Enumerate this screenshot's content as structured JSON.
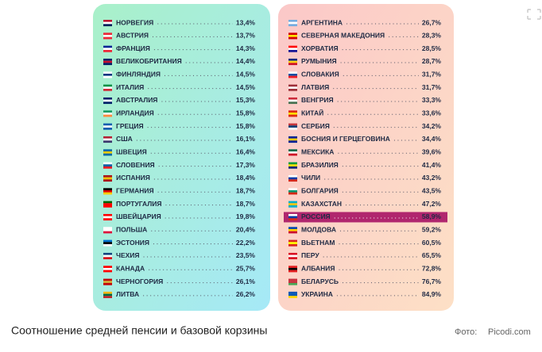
{
  "left": {
    "rows": [
      {
        "name": "НОРВЕГИЯ",
        "value": "13,4%"
      },
      {
        "name": "АВСТРИЯ",
        "value": "13,7%"
      },
      {
        "name": "ФРАНЦИЯ",
        "value": "14,3%"
      },
      {
        "name": "ВЕЛИКОБРИТАНИЯ",
        "value": "14,4%"
      },
      {
        "name": "ФИНЛЯНДИЯ",
        "value": "14,5%"
      },
      {
        "name": "ИТАЛИЯ",
        "value": "14,5%"
      },
      {
        "name": "АВСТРАЛИЯ",
        "value": "15,3%"
      },
      {
        "name": "ИРЛАНДИЯ",
        "value": "15,8%"
      },
      {
        "name": "ГРЕЦИЯ",
        "value": "15,8%"
      },
      {
        "name": "США",
        "value": "16,1%"
      },
      {
        "name": "ШВЕЦИЯ",
        "value": "16,4%"
      },
      {
        "name": "СЛОВЕНИЯ",
        "value": "17,3%"
      },
      {
        "name": "ИСПАНИЯ",
        "value": "18,4%"
      },
      {
        "name": "ГЕРМАНИЯ",
        "value": "18,7%"
      },
      {
        "name": "ПОРТУГАЛИЯ",
        "value": "18,7%"
      },
      {
        "name": "ШВЕЙЦАРИЯ",
        "value": "19,8%"
      },
      {
        "name": "ПОЛЬША",
        "value": "20,4%"
      },
      {
        "name": "ЭСТОНИЯ",
        "value": "22,2%"
      },
      {
        "name": "ЧЕХИЯ",
        "value": "23,5%"
      },
      {
        "name": "КАНАДА",
        "value": "25,7%"
      },
      {
        "name": "ЧЕРНОГОРИЯ",
        "value": "26,1%"
      },
      {
        "name": "ЛИТВА",
        "value": "26,2%"
      }
    ]
  },
  "right": {
    "rows": [
      {
        "name": "АРГЕНТИНА",
        "value": "26,7%"
      },
      {
        "name": "СЕВЕРНАЯ МАКЕДОНИЯ",
        "value": "28,3%"
      },
      {
        "name": "ХОРВАТИЯ",
        "value": "28,5%"
      },
      {
        "name": "РУМЫНИЯ",
        "value": "28,7%"
      },
      {
        "name": "СЛОВАКИЯ",
        "value": "31,7%"
      },
      {
        "name": "ЛАТВИЯ",
        "value": "31,7%"
      },
      {
        "name": "ВЕНГРИЯ",
        "value": "33,3%"
      },
      {
        "name": "КИТАЙ",
        "value": "33,6%"
      },
      {
        "name": "СЕРБИЯ",
        "value": "34,2%"
      },
      {
        "name": "БОСНИЯ И ГЕРЦЕГОВИНА",
        "value": "34,4%"
      },
      {
        "name": "МЕКСИКА",
        "value": "39,6%"
      },
      {
        "name": "БРАЗИЛИЯ",
        "value": "41,4%"
      },
      {
        "name": "ЧИЛИ",
        "value": "43,2%"
      },
      {
        "name": "БОЛГАРИЯ",
        "value": "43,5%"
      },
      {
        "name": "КАЗАХСТАН",
        "value": "47,2%"
      },
      {
        "name": "РОССИЯ",
        "value": "58,9%",
        "highlighted": true
      },
      {
        "name": "МОЛДОВА",
        "value": "59,2%"
      },
      {
        "name": "ВЬЕТНАМ",
        "value": "60,5%"
      },
      {
        "name": "ПЕРУ",
        "value": "65,5%"
      },
      {
        "name": "АЛБАНИЯ",
        "value": "72,8%"
      },
      {
        "name": "БЕЛАРУСЬ",
        "value": "76,7%"
      },
      {
        "name": "УКРАИНА",
        "value": "84,9%"
      }
    ]
  },
  "caption": {
    "text": "Соотношение средней пенсии и базовой корзины",
    "credit_label": "Фото:",
    "credit": "Picodi.com"
  }
}
